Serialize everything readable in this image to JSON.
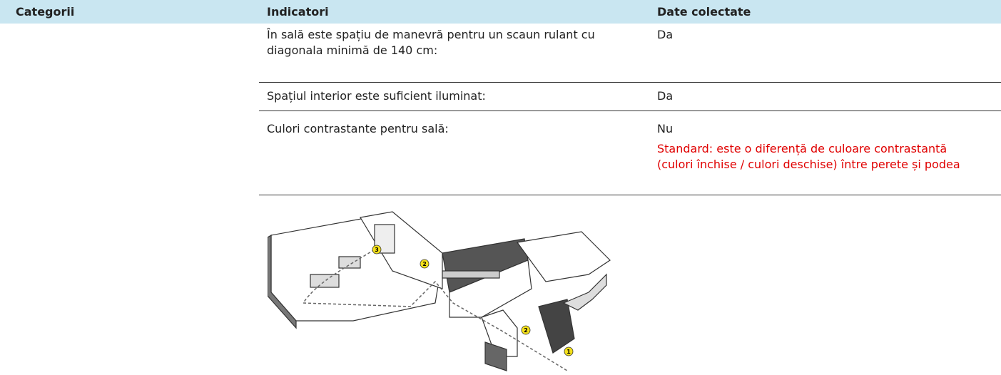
{
  "table": {
    "headers": [
      "Categorii",
      "Indicatori",
      "Date colectate"
    ],
    "rows": [
      {
        "indicator": "În sală este spațiu de manevră pentru un scaun rulant cu diagonala minimă de 140 cm:",
        "value": "Da"
      },
      {
        "indicator": "Spațiul interior este suficient iluminat:",
        "value": "Da"
      },
      {
        "indicator": "Culori contrastante pentru sală:",
        "value": "Nu",
        "note": "Standard: este o diferență de culoare contrastantă (culori închise / culori deschise) între perete și podea"
      }
    ]
  },
  "image": {
    "markers": [
      "3",
      "2",
      "2",
      "1"
    ]
  }
}
